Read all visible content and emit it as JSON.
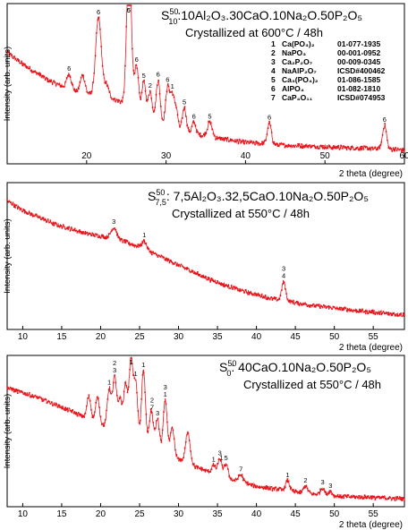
{
  "chart_data": [
    {
      "type": "line",
      "title_main": "S",
      "title_sup": "50",
      "title_sub": "10",
      "composition": ":10Al₂O₃.30CaO.10Na₂O.50P₂O₅",
      "subtitle": "Crystallized at 600°C / 48h",
      "xlabel": "2 theta (degree)",
      "ylabel": "Intensity (arb. units)",
      "xlim": [
        10,
        60
      ],
      "ylim": [
        0,
        100
      ],
      "xticks": [
        20,
        30,
        40,
        50,
        60
      ],
      "color": "#e8151b",
      "profile": {
        "background": [
          [
            10,
            72
          ],
          [
            12,
            64
          ],
          [
            15,
            54
          ],
          [
            18,
            47
          ],
          [
            20,
            44
          ],
          [
            22,
            43
          ],
          [
            24,
            40
          ],
          [
            26,
            34
          ],
          [
            28,
            28
          ],
          [
            30,
            23
          ],
          [
            33,
            18
          ],
          [
            36,
            15
          ],
          [
            40,
            12
          ],
          [
            45,
            10
          ],
          [
            50,
            9
          ],
          [
            55,
            8
          ],
          [
            60,
            7
          ]
        ],
        "peaks": [
          [
            17.8,
            10,
            0.3
          ],
          [
            19.5,
            12,
            0.3
          ],
          [
            21.5,
            52,
            0.35
          ],
          [
            22.5,
            8,
            0.3
          ],
          [
            25.2,
            60,
            0.25
          ],
          [
            25.5,
            55,
            0.25
          ],
          [
            26.3,
            30,
            0.25
          ],
          [
            27.2,
            22,
            0.25
          ],
          [
            28.0,
            18,
            0.25
          ],
          [
            29.0,
            28,
            0.25
          ],
          [
            30.2,
            26,
            0.25
          ],
          [
            30.8,
            22,
            0.25
          ],
          [
            31.3,
            12,
            0.2
          ],
          [
            32.3,
            16,
            0.25
          ],
          [
            33.5,
            8,
            0.25
          ],
          [
            35.5,
            10,
            0.3
          ],
          [
            43.0,
            14,
            0.25
          ],
          [
            57.5,
            16,
            0.25
          ]
        ]
      },
      "annotations": [
        {
          "x": 17.8,
          "label": "6"
        },
        {
          "x": 21.5,
          "label": "6"
        },
        {
          "x": 25.3,
          "label": "6"
        },
        {
          "x": 25.3,
          "label": "5"
        },
        {
          "x": 26.3,
          "label": "6"
        },
        {
          "x": 27.2,
          "label": "5"
        },
        {
          "x": 28.0,
          "label": "2"
        },
        {
          "x": 29.0,
          "label": "6"
        },
        {
          "x": 30.2,
          "label": "6"
        },
        {
          "x": 30.8,
          "label": "1"
        },
        {
          "x": 32.3,
          "label": "5"
        },
        {
          "x": 33.5,
          "label": "6"
        },
        {
          "x": 35.5,
          "label": "5"
        },
        {
          "x": 43.0,
          "label": "6"
        },
        {
          "x": 57.5,
          "label": "6"
        }
      ],
      "legend": [
        {
          "num": "1",
          "phase": "Ca(PO₃)₂",
          "ref": "01-077-1935"
        },
        {
          "num": "2",
          "phase": "NaPO₃",
          "ref": "00-001-0952"
        },
        {
          "num": "3",
          "phase": "Ca₂P₂O₇",
          "ref": "00-009-0345"
        },
        {
          "num": "4",
          "phase": "NaAlP₂O₇",
          "ref": "ICSD#400462"
        },
        {
          "num": "5",
          "phase": "Ca₃(PO₄)₂",
          "ref": "01-086-1585"
        },
        {
          "num": "6",
          "phase": "AlPO₄",
          "ref": "01-082-1810"
        },
        {
          "num": "7",
          "phase": "CaP₄O₁₁",
          "ref": "ICSD#074953"
        }
      ]
    },
    {
      "type": "line",
      "title_main": "S",
      "title_sup": "50",
      "title_sub": "7,5",
      "composition": ": 7,5Al₂O₃.32,5CaO.10Na₂O.50P₂O₅",
      "subtitle": "Crystallized at 550°C / 48h",
      "xlabel": "2 theta (degree)",
      "ylabel": "Intensity (arb. units)",
      "xlim": [
        8,
        59
      ],
      "ylim": [
        0,
        100
      ],
      "xticks": [
        10,
        15,
        20,
        25,
        30,
        35,
        40,
        45,
        50,
        55
      ],
      "color": "#e8151b",
      "profile": {
        "background": [
          [
            8,
            92
          ],
          [
            10,
            85
          ],
          [
            14,
            75
          ],
          [
            18,
            68
          ],
          [
            22,
            64
          ],
          [
            25,
            58
          ],
          [
            28,
            50
          ],
          [
            31,
            42
          ],
          [
            34,
            34
          ],
          [
            38,
            26
          ],
          [
            42,
            20
          ],
          [
            46,
            16
          ],
          [
            50,
            13
          ],
          [
            55,
            10
          ],
          [
            59,
            8
          ]
        ],
        "peaks": [
          [
            21.7,
            8,
            0.35
          ],
          [
            25.6,
            6,
            0.3
          ],
          [
            43.5,
            14,
            0.25
          ]
        ]
      },
      "annotations": [
        {
          "x": 21.7,
          "label": "3"
        },
        {
          "x": 25.6,
          "label": "1"
        },
        {
          "x": 43.5,
          "label": "4"
        },
        {
          "x": 43.5,
          "label": "3"
        }
      ]
    },
    {
      "type": "line",
      "title_main": "S",
      "title_sup": "50",
      "title_sub": "0",
      "composition": ": 40CaO.10Na₂O.50P₂O₅",
      "subtitle": "Crystallized at 550°C / 48h",
      "xlabel": "2 theta (degree)",
      "ylabel": "Intensity (arb. units)",
      "xlim": [
        8,
        59
      ],
      "ylim": [
        0,
        100
      ],
      "xticks": [
        10,
        15,
        20,
        25,
        30,
        35,
        40,
        45,
        50,
        55
      ],
      "color": "#e8151b",
      "profile": {
        "background": [
          [
            8,
            82
          ],
          [
            12,
            75
          ],
          [
            16,
            66
          ],
          [
            20,
            56
          ],
          [
            24,
            46
          ],
          [
            28,
            36
          ],
          [
            32,
            26
          ],
          [
            36,
            18
          ],
          [
            40,
            12
          ],
          [
            45,
            8
          ],
          [
            50,
            5
          ],
          [
            55,
            4
          ],
          [
            59,
            3
          ]
        ],
        "peaks": [
          [
            18.5,
            16,
            0.25
          ],
          [
            19.6,
            18,
            0.25
          ],
          [
            21.1,
            28,
            0.25
          ],
          [
            21.8,
            38,
            0.25
          ],
          [
            22.5,
            24,
            0.25
          ],
          [
            23.2,
            36,
            0.25
          ],
          [
            23.9,
            55,
            0.25
          ],
          [
            24.5,
            40,
            0.25
          ],
          [
            25.5,
            52,
            0.25
          ],
          [
            26.5,
            26,
            0.25
          ],
          [
            27.3,
            22,
            0.25
          ],
          [
            28.3,
            38,
            0.25
          ],
          [
            29.2,
            20,
            0.25
          ],
          [
            31.2,
            22,
            0.3
          ],
          [
            34.5,
            6,
            0.25
          ],
          [
            35.3,
            12,
            0.25
          ],
          [
            36.1,
            10,
            0.25
          ],
          [
            38.0,
            5,
            0.3
          ],
          [
            44.0,
            7,
            0.25
          ],
          [
            46.3,
            5,
            0.25
          ],
          [
            48.5,
            5,
            0.25
          ],
          [
            49.5,
            3,
            0.25
          ]
        ]
      },
      "annotations": [
        {
          "x": 21.1,
          "label": "1"
        },
        {
          "x": 21.8,
          "label": "3"
        },
        {
          "x": 21.8,
          "label": "2"
        },
        {
          "x": 23.9,
          "label": "1"
        },
        {
          "x": 24.5,
          "label": "1"
        },
        {
          "x": 25.5,
          "label": "1"
        },
        {
          "x": 26.6,
          "label": "7"
        },
        {
          "x": 26.6,
          "label": "2"
        },
        {
          "x": 27.3,
          "label": "3"
        },
        {
          "x": 28.3,
          "label": "1"
        },
        {
          "x": 28.3,
          "label": "3"
        },
        {
          "x": 34.5,
          "label": "1"
        },
        {
          "x": 35.3,
          "label": "3"
        },
        {
          "x": 35.5,
          "label": "1"
        },
        {
          "x": 36.1,
          "label": "5"
        },
        {
          "x": 38.0,
          "label": "7"
        },
        {
          "x": 44.0,
          "label": "1"
        },
        {
          "x": 46.3,
          "label": "2"
        },
        {
          "x": 48.5,
          "label": "3"
        },
        {
          "x": 49.5,
          "label": "3"
        }
      ]
    }
  ]
}
